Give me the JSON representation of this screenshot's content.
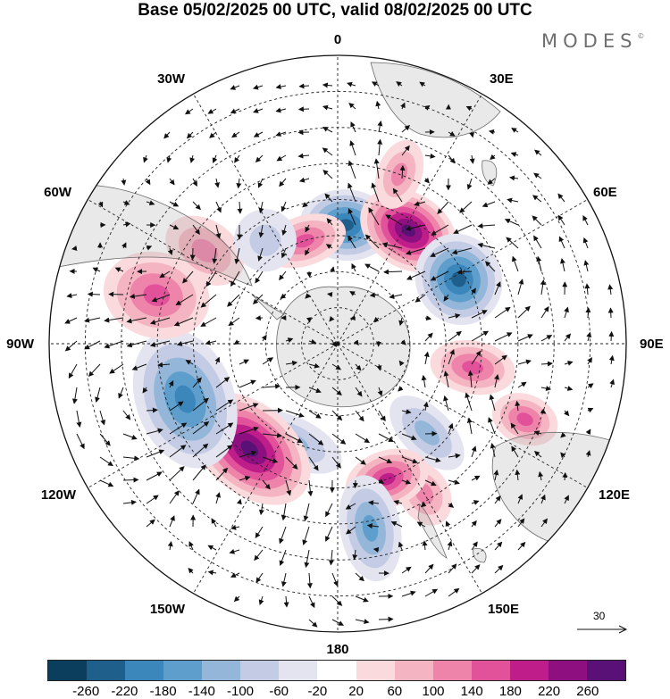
{
  "title": "Base 05/02/2025 00 UTC, valid 08/02/2025 00 UTC",
  "brand": "MODES",
  "brand_mark": "©",
  "longitude_labels": {
    "n": "0",
    "ne30": "30E",
    "ne60": "60E",
    "e": "90E",
    "se120": "120E",
    "se150": "150E",
    "s": "180",
    "sw150": "150W",
    "sw120": "120W",
    "w": "90W",
    "nw60": "60W",
    "nw30": "30W"
  },
  "reference_vector": "30",
  "colorbar": {
    "colors": [
      "#0b3d5c",
      "#1f5f8c",
      "#3b86bb",
      "#5d9ecc",
      "#93b6d9",
      "#c3cce4",
      "#e4e4f0",
      "#ffffff",
      "#fadadd",
      "#f5b4c1",
      "#ee84a9",
      "#e1529a",
      "#bf1e8a",
      "#8e0f7f",
      "#5a1177"
    ],
    "ticks": [
      "-260",
      "-220",
      "-180",
      "-140",
      "-100",
      "-60",
      "-20",
      "20",
      "60",
      "100",
      "140",
      "180",
      "220",
      "260"
    ]
  },
  "anomalies": [
    {
      "lon": 4,
      "lat": -57,
      "rx": 40,
      "ry": 52,
      "value": -220
    },
    {
      "lon": 32,
      "lat": -53,
      "rx": 42,
      "ry": 58,
      "value": 250
    },
    {
      "lon": 62,
      "lat": -52,
      "rx": 48,
      "ry": 52,
      "value": -230
    },
    {
      "lon": 100,
      "lat": -52,
      "rx": 48,
      "ry": 30,
      "value": 150
    },
    {
      "lon": 112,
      "lat": -34,
      "rx": 38,
      "ry": 28,
      "value": 140
    },
    {
      "lon": 135,
      "lat": -55,
      "rx": 52,
      "ry": 28,
      "value": -120
    },
    {
      "lon": 150,
      "lat": -42,
      "rx": 38,
      "ry": 28,
      "value": 120
    },
    {
      "lon": 160,
      "lat": -50,
      "rx": 32,
      "ry": 48,
      "value": 180
    },
    {
      "lon": 170,
      "lat": -38,
      "rx": 60,
      "ry": 34,
      "value": -130
    },
    {
      "lon": -155,
      "lat": -60,
      "rx": 28,
      "ry": 60,
      "value": -110
    },
    {
      "lon": -140,
      "lat": -52,
      "rx": 50,
      "ry": 78,
      "value": 260
    },
    {
      "lon": -110,
      "lat": -45,
      "rx": 55,
      "ry": 80,
      "value": -180
    },
    {
      "lon": -75,
      "lat": -38,
      "rx": 60,
      "ry": 48,
      "value": 150
    },
    {
      "lon": -55,
      "lat": -45,
      "rx": 48,
      "ry": 34,
      "value": 90
    },
    {
      "lon": -18,
      "lat": -60,
      "rx": 28,
      "ry": 48,
      "value": 140
    },
    {
      "lon": -35,
      "lat": -55,
      "rx": 35,
      "ry": 35,
      "value": -60
    },
    {
      "lon": 20,
      "lat": -40,
      "rx": 40,
      "ry": 25,
      "value": 90
    }
  ]
}
